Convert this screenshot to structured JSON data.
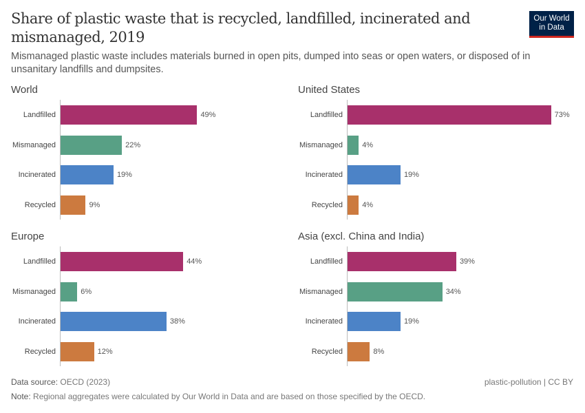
{
  "title": "Share of plastic waste that is recycled, landfilled, incinerated and mismanaged, 2019",
  "subtitle": "Mismanaged plastic waste includes materials burned in open pits, dumped into seas or open waters, or disposed of in unsanitary landfills and dumpsites.",
  "logo": {
    "line1": "Our World",
    "line2": "in Data"
  },
  "footer": {
    "source_label": "Data source:",
    "source": "OECD (2023)",
    "note_label": "Note:",
    "note": "Regional aggregates were calculated by Our World in Data and are based on those specified by the OECD.",
    "license": "plastic-pollution | CC BY"
  },
  "colors": {
    "Landfilled": "#a8306b",
    "Mismanaged": "#58a085",
    "Incinerated": "#4c83c7",
    "Recycled": "#cc7a3f"
  },
  "chart_data": [
    {
      "type": "bar",
      "orientation": "horizontal",
      "title": "World",
      "categories": [
        "Landfilled",
        "Mismanaged",
        "Incinerated",
        "Recycled"
      ],
      "values": [
        49,
        22,
        19,
        9
      ],
      "labels": [
        "49%",
        "22%",
        "19%",
        "9%"
      ],
      "unit": "%"
    },
    {
      "type": "bar",
      "orientation": "horizontal",
      "title": "United States",
      "categories": [
        "Landfilled",
        "Mismanaged",
        "Incinerated",
        "Recycled"
      ],
      "values": [
        73,
        4,
        19,
        4
      ],
      "labels": [
        "73%",
        "4%",
        "19%",
        "4%"
      ],
      "unit": "%"
    },
    {
      "type": "bar",
      "orientation": "horizontal",
      "title": "Europe",
      "categories": [
        "Landfilled",
        "Mismanaged",
        "Incinerated",
        "Recycled"
      ],
      "values": [
        44,
        6,
        38,
        12
      ],
      "labels": [
        "44%",
        "6%",
        "38%",
        "12%"
      ],
      "unit": "%"
    },
    {
      "type": "bar",
      "orientation": "horizontal",
      "title": "Asia (excl. China and India)",
      "categories": [
        "Landfilled",
        "Mismanaged",
        "Incinerated",
        "Recycled"
      ],
      "values": [
        39,
        34,
        19,
        8
      ],
      "labels": [
        "39%",
        "34%",
        "19%",
        "8%"
      ],
      "unit": "%"
    }
  ]
}
